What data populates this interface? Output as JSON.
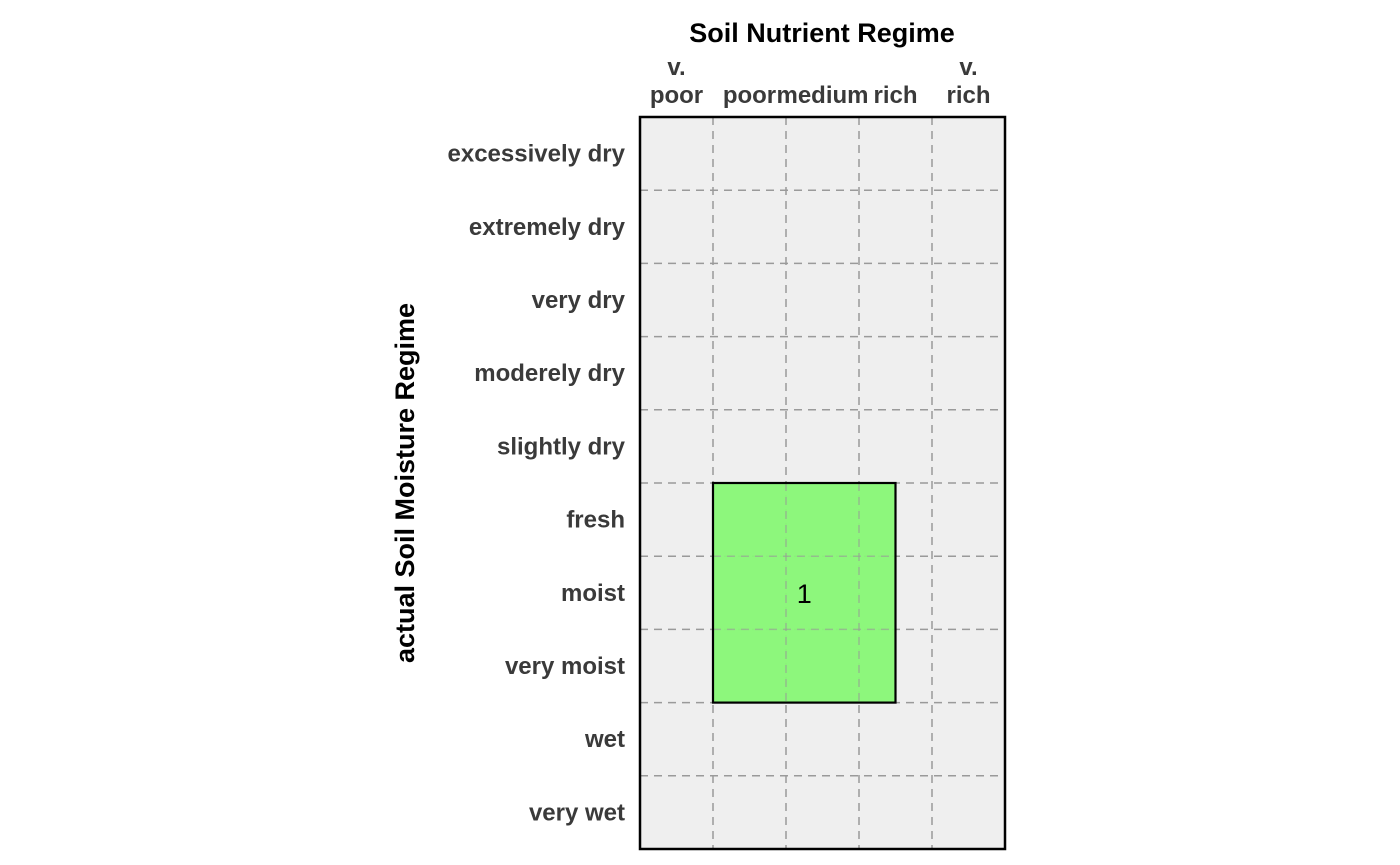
{
  "chart_data": {
    "type": "heatmap",
    "title": "Soil Nutrient Regime",
    "ylabel": "actual Soil Moisture Regime",
    "x_categories": [
      [
        "v.",
        "poor"
      ],
      [
        "poor"
      ],
      [
        "medium"
      ],
      [
        "rich"
      ],
      [
        "v.",
        "rich"
      ]
    ],
    "y_categories": [
      "excessively dry",
      "extremely dry",
      "very dry",
      "moderely dry",
      "slightly dry",
      "fresh",
      "moist",
      "very moist",
      "wet",
      "very wet"
    ],
    "grid": true,
    "background_color": "#efefef",
    "regions": [
      {
        "label": "1",
        "color": "#88f777",
        "x_range": [
          1,
          3.5
        ],
        "y_range": [
          5,
          8
        ]
      }
    ]
  }
}
